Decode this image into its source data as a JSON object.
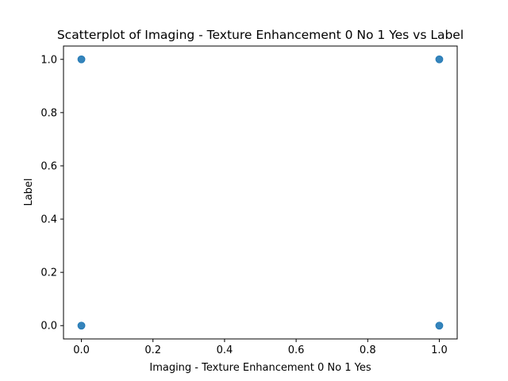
{
  "chart_data": {
    "type": "scatter",
    "title": "Scatterplot of Imaging - Texture Enhancement 0 No 1 Yes vs Label",
    "xlabel": "Imaging - Texture Enhancement 0 No 1 Yes",
    "ylabel": "Label",
    "xlim": [
      -0.05,
      1.05
    ],
    "ylim": [
      -0.05,
      1.05
    ],
    "xticks": [
      "0.0",
      "0.2",
      "0.4",
      "0.6",
      "0.8",
      "1.0"
    ],
    "yticks": [
      "0.0",
      "0.2",
      "0.4",
      "0.6",
      "0.8",
      "1.0"
    ],
    "grid": false,
    "legend": "none",
    "marker_color": "#1f77b4",
    "series": [
      {
        "points": [
          {
            "x": 0,
            "y": 1
          },
          {
            "x": 1,
            "y": 1
          },
          {
            "x": 0,
            "y": 0
          },
          {
            "x": 1,
            "y": 0
          }
        ]
      }
    ]
  }
}
